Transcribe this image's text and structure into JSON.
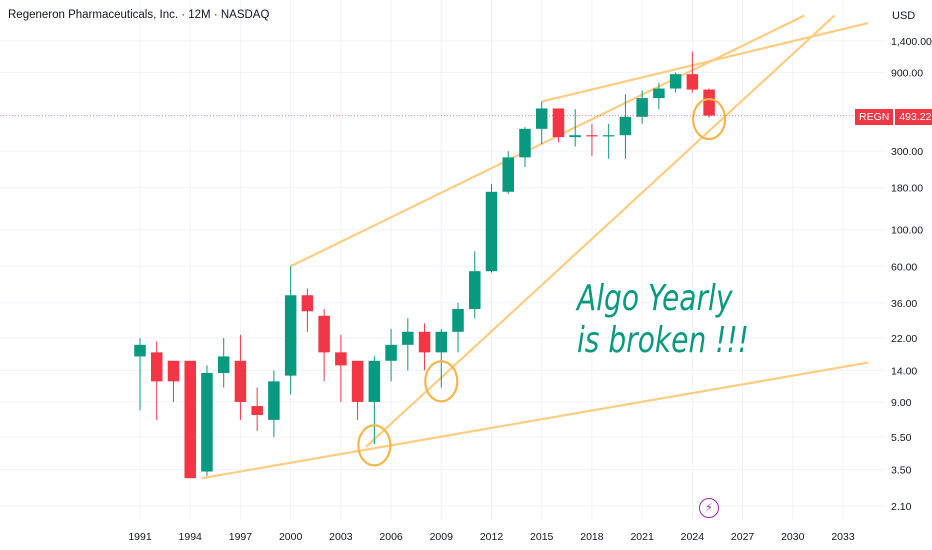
{
  "header": {
    "title": "Regeneron Pharmaceuticals, Inc. · 12M · NASDAQ",
    "currency": "USD"
  },
  "annotation": {
    "line1": "Algo Yearly",
    "line2": "is broken !!!"
  },
  "price_tag": {
    "symbol": "REGN",
    "price": "493.22"
  },
  "event_icon": "lightning-icon",
  "colors": {
    "up": "#089981",
    "down": "#f23645",
    "trendline": "#ffcc80",
    "annotation": "#089981"
  },
  "chart_data": {
    "type": "candlestick",
    "scale": "log",
    "ylim": [
      1.8,
      2000
    ],
    "xlim": [
      1989.5,
      2034.5
    ],
    "y_ticks": [
      {
        "value": 1400,
        "label": "1,400.00"
      },
      {
        "value": 900,
        "label": "900.00"
      },
      {
        "value": 300,
        "label": "300.00"
      },
      {
        "value": 180,
        "label": "180.00"
      },
      {
        "value": 100,
        "label": "100.00"
      },
      {
        "value": 60,
        "label": "60.00"
      },
      {
        "value": 36,
        "label": "36.00"
      },
      {
        "value": 22,
        "label": "22.00"
      },
      {
        "value": 14,
        "label": "14.00"
      },
      {
        "value": 9,
        "label": "9.00"
      },
      {
        "value": 5.5,
        "label": "5.50"
      },
      {
        "value": 3.5,
        "label": "3.50"
      },
      {
        "value": 2.1,
        "label": "2.10"
      }
    ],
    "x_ticks": [
      "1991",
      "1994",
      "1997",
      "2000",
      "2003",
      "2006",
      "2009",
      "2012",
      "2015",
      "2018",
      "2021",
      "2024",
      "2027",
      "2030",
      "2033"
    ],
    "candles": [
      {
        "year": 1991,
        "open": 17,
        "high": 22,
        "low": 8,
        "close": 20
      },
      {
        "year": 1992,
        "open": 18,
        "high": 21,
        "low": 7,
        "close": 12
      },
      {
        "year": 1993,
        "open": 16,
        "high": 16,
        "low": 9,
        "close": 12
      },
      {
        "year": 1994,
        "open": 16,
        "high": 16,
        "low": 3.1,
        "close": 3.1
      },
      {
        "year": 1995,
        "open": 3.4,
        "high": 15,
        "low": 3.2,
        "close": 13.5
      },
      {
        "year": 1996,
        "open": 13.5,
        "high": 22,
        "low": 11,
        "close": 17
      },
      {
        "year": 1997,
        "open": 16,
        "high": 23,
        "low": 7,
        "close": 9
      },
      {
        "year": 1998,
        "open": 8.5,
        "high": 11,
        "low": 6,
        "close": 7.5
      },
      {
        "year": 1999,
        "open": 7,
        "high": 14,
        "low": 5.5,
        "close": 12
      },
      {
        "year": 2000,
        "open": 13,
        "high": 60,
        "low": 10,
        "close": 40
      },
      {
        "year": 2001,
        "open": 40,
        "high": 44,
        "low": 24,
        "close": 32
      },
      {
        "year": 2002,
        "open": 30,
        "high": 33,
        "low": 12,
        "close": 18
      },
      {
        "year": 2003,
        "open": 18,
        "high": 23,
        "low": 9,
        "close": 15
      },
      {
        "year": 2004,
        "open": 16,
        "high": 16,
        "low": 7,
        "close": 9
      },
      {
        "year": 2005,
        "open": 9,
        "high": 17,
        "low": 5,
        "close": 16
      },
      {
        "year": 2006,
        "open": 16,
        "high": 25,
        "low": 12,
        "close": 20
      },
      {
        "year": 2007,
        "open": 20,
        "high": 29,
        "low": 14,
        "close": 24
      },
      {
        "year": 2008,
        "open": 24,
        "high": 27,
        "low": 14,
        "close": 18
      },
      {
        "year": 2009,
        "open": 18,
        "high": 25,
        "low": 11,
        "close": 24
      },
      {
        "year": 2010,
        "open": 24,
        "high": 36,
        "low": 18,
        "close": 33
      },
      {
        "year": 2011,
        "open": 33,
        "high": 74,
        "low": 29,
        "close": 56
      },
      {
        "year": 2012,
        "open": 56,
        "high": 190,
        "low": 55,
        "close": 170
      },
      {
        "year": 2013,
        "open": 170,
        "high": 300,
        "low": 165,
        "close": 275
      },
      {
        "year": 2014,
        "open": 275,
        "high": 420,
        "low": 240,
        "close": 410
      },
      {
        "year": 2015,
        "open": 410,
        "high": 600,
        "low": 330,
        "close": 545
      },
      {
        "year": 2016,
        "open": 545,
        "high": 545,
        "low": 340,
        "close": 365
      },
      {
        "year": 2017,
        "open": 365,
        "high": 540,
        "low": 320,
        "close": 375
      },
      {
        "year": 2018,
        "open": 375,
        "high": 440,
        "low": 280,
        "close": 370
      },
      {
        "year": 2019,
        "open": 370,
        "high": 440,
        "low": 270,
        "close": 375
      },
      {
        "year": 2020,
        "open": 375,
        "high": 665,
        "low": 270,
        "close": 485
      },
      {
        "year": 2021,
        "open": 485,
        "high": 700,
        "low": 440,
        "close": 630
      },
      {
        "year": 2022,
        "open": 630,
        "high": 780,
        "low": 540,
        "close": 720
      },
      {
        "year": 2023,
        "open": 720,
        "high": 900,
        "low": 680,
        "close": 880
      },
      {
        "year": 2024,
        "open": 880,
        "high": 1210,
        "low": 680,
        "close": 710
      },
      {
        "year": 2025,
        "open": 710,
        "high": 720,
        "low": 480,
        "close": 493.22
      }
    ],
    "trendlines": [
      {
        "from": [
          1994.7,
          3.1
        ],
        "to": [
          2034.5,
          15.6
        ]
      },
      {
        "from": [
          2000.0,
          60
        ],
        "to": [
          2030.7,
          2000
        ]
      },
      {
        "from": [
          2015.0,
          600
        ],
        "to": [
          2034.5,
          1800
        ]
      },
      {
        "from": [
          2004.5,
          4.8
        ],
        "to": [
          2032.5,
          2000
        ]
      }
    ],
    "circles": [
      {
        "year": 2005,
        "value": 4.9
      },
      {
        "year": 2009,
        "value": 12
      },
      {
        "year": 2025,
        "value": 470
      }
    ],
    "last_price_line": 493.22
  }
}
